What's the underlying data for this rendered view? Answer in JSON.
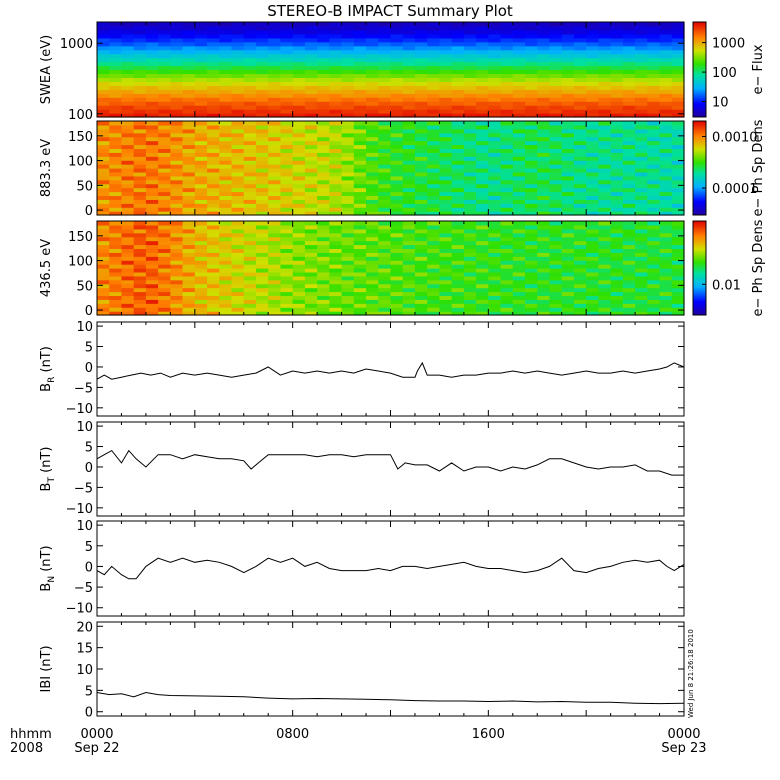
{
  "title": "STEREO-B IMPACT Summary Plot",
  "side_stamp": "Wed Jun  8 21:26:18 2010",
  "time_axis": {
    "row1_labels": [
      "hhmm",
      "0000",
      "0800",
      "1600",
      "0000"
    ],
    "row2_labels": [
      "2008",
      "Sep 22",
      "Sep 23"
    ],
    "range_hours": [
      0,
      24
    ]
  },
  "chart_data": [
    {
      "type": "heatmap",
      "ylabel": "SWEA (eV)",
      "yscale": "log",
      "ylim": [
        90,
        2000
      ],
      "yticks": [
        100,
        1000
      ],
      "ytick_labels": [
        "100",
        "1000"
      ],
      "colorbar": {
        "label": "e− Flux",
        "scale": "log",
        "range": [
          3,
          5000
        ],
        "ticks": [
          10,
          100,
          1000
        ],
        "tick_labels": [
          "10",
          "100",
          "1000"
        ]
      },
      "profile": {
        "energy_eV": [
          90,
          100,
          150,
          200,
          250,
          300,
          400,
          500,
          700,
          1000,
          1500,
          2000
        ],
        "flux": [
          4000,
          3600,
          2000,
          1100,
          700,
          450,
          200,
          100,
          40,
          15,
          6,
          4
        ]
      }
    },
    {
      "type": "heatmap",
      "ylabel": "883.3 eV",
      "ylim": [
        -10,
        180
      ],
      "yticks": [
        0,
        50,
        100,
        150
      ],
      "ytick_labels": [
        "0",
        "50",
        "100",
        "150"
      ],
      "colorbar": {
        "label": "e− Ph Sp Dens",
        "scale": "log",
        "range": [
          3e-05,
          0.002
        ],
        "ticks": [
          0.0001,
          0.001
        ],
        "tick_labels": [
          "0.0001",
          "0.0010"
        ]
      },
      "level_by_hour": {
        "hours": [
          0,
          2,
          4,
          6,
          8,
          10,
          11,
          12,
          14,
          16,
          18,
          20,
          22,
          24
        ],
        "density": [
          0.0009,
          0.0011,
          0.0008,
          0.0007,
          0.0006,
          0.0005,
          0.00035,
          0.0003,
          0.00025,
          0.0002,
          0.00025,
          0.0002,
          0.0002,
          0.00018
        ]
      }
    },
    {
      "type": "heatmap",
      "ylabel": "436.5 eV",
      "ylim": [
        -10,
        180
      ],
      "yticks": [
        0,
        50,
        100,
        150
      ],
      "ytick_labels": [
        "0",
        "50",
        "100",
        "150"
      ],
      "colorbar": {
        "label": "e− Ph Sp Dens",
        "scale": "log",
        "range": [
          0.003,
          0.12
        ],
        "ticks": [
          0.01
        ],
        "tick_labels": [
          "0.01"
        ]
      },
      "level_by_hour": {
        "hours": [
          0,
          2,
          4,
          6,
          8,
          10,
          12,
          14,
          16,
          18,
          20,
          22,
          24
        ],
        "density": [
          0.06,
          0.08,
          0.05,
          0.04,
          0.032,
          0.028,
          0.026,
          0.024,
          0.023,
          0.022,
          0.022,
          0.021,
          0.021
        ]
      }
    },
    {
      "type": "line",
      "ylabel": "B",
      "ylabel_sub": "R",
      "ylabel_unit": " (nT)",
      "ylim": [
        -12,
        11
      ],
      "yticks": [
        -10,
        -5,
        0,
        5,
        10
      ],
      "ytick_labels": [
        "−10",
        "−5",
        "0",
        "5",
        "10"
      ],
      "x": [
        0,
        0.3,
        0.6,
        1.0,
        1.4,
        1.8,
        2.2,
        2.6,
        3.0,
        3.5,
        4.0,
        4.5,
        5.0,
        5.5,
        6.0,
        6.5,
        7.0,
        7.5,
        8.0,
        8.5,
        9.0,
        9.5,
        10.0,
        10.5,
        11.0,
        11.5,
        12.0,
        12.5,
        13.0,
        13.1,
        13.3,
        13.5,
        14.0,
        14.5,
        15.0,
        15.5,
        16.0,
        16.5,
        17.0,
        17.5,
        18.0,
        18.5,
        19.0,
        19.5,
        20.0,
        20.5,
        21.0,
        21.5,
        22.0,
        22.5,
        23.0,
        23.3,
        23.6,
        24.0
      ],
      "y": [
        -3,
        -2,
        -3,
        -2.5,
        -2,
        -1.5,
        -2,
        -1.5,
        -2.5,
        -1.5,
        -2,
        -1.5,
        -2,
        -2.5,
        -2,
        -1.5,
        0,
        -2,
        -1,
        -1.5,
        -1,
        -1.5,
        -1,
        -1.5,
        -0.5,
        -1,
        -1.5,
        -2.5,
        -2.5,
        -1,
        1,
        -2,
        -2,
        -2.5,
        -2,
        -2,
        -1.5,
        -1.5,
        -1,
        -1.5,
        -1,
        -1.5,
        -2,
        -1.5,
        -1,
        -1.5,
        -1.5,
        -1,
        -1.5,
        -1,
        -0.5,
        0,
        1,
        0
      ]
    },
    {
      "type": "line",
      "ylabel": "B",
      "ylabel_sub": "T",
      "ylabel_unit": " (nT)",
      "ylim": [
        -12,
        11
      ],
      "yticks": [
        -10,
        -5,
        0,
        5,
        10
      ],
      "ytick_labels": [
        "−10",
        "−5",
        "0",
        "5",
        "10"
      ],
      "x": [
        0,
        0.3,
        0.6,
        1.0,
        1.3,
        1.6,
        2.0,
        2.5,
        3.0,
        3.5,
        4.0,
        4.5,
        5.0,
        5.5,
        6.0,
        6.3,
        6.6,
        7.0,
        7.5,
        8.0,
        8.5,
        9.0,
        9.5,
        10.0,
        10.5,
        11.0,
        11.5,
        12.0,
        12.3,
        12.6,
        13.0,
        13.5,
        14.0,
        14.5,
        15.0,
        15.5,
        16.0,
        16.5,
        17.0,
        17.5,
        18.0,
        18.5,
        19.0,
        19.5,
        20.0,
        20.5,
        21.0,
        21.5,
        22.0,
        22.5,
        23.0,
        23.5,
        24.0
      ],
      "y": [
        2,
        3,
        4,
        1,
        4,
        2,
        0,
        3,
        3,
        2,
        3,
        2.5,
        2,
        2,
        1.5,
        -0.5,
        1,
        3,
        3,
        3,
        3,
        2.5,
        3,
        3,
        2.5,
        3,
        3,
        3,
        -0.5,
        1,
        0.5,
        0.5,
        -1,
        1,
        -1,
        0,
        0,
        -1,
        0,
        -0.5,
        0.5,
        2,
        2,
        1,
        0,
        -0.5,
        0,
        0,
        0.5,
        -1,
        -1,
        -2,
        -2
      ]
    },
    {
      "type": "line",
      "ylabel": "B",
      "ylabel_sub": "N",
      "ylabel_unit": " (nT)",
      "ylim": [
        -12,
        11
      ],
      "yticks": [
        -10,
        -5,
        0,
        5,
        10
      ],
      "ytick_labels": [
        "−10",
        "−5",
        "0",
        "5",
        "10"
      ],
      "x": [
        0,
        0.3,
        0.6,
        1.0,
        1.3,
        1.6,
        2.0,
        2.5,
        3.0,
        3.5,
        4.0,
        4.5,
        5.0,
        5.5,
        6.0,
        6.5,
        7.0,
        7.5,
        8.0,
        8.5,
        9.0,
        9.5,
        10.0,
        10.5,
        11.0,
        11.5,
        12.0,
        12.5,
        13.0,
        13.5,
        14.0,
        14.5,
        15.0,
        15.5,
        16.0,
        16.5,
        17.0,
        17.5,
        18.0,
        18.5,
        19.0,
        19.5,
        20.0,
        20.5,
        21.0,
        21.5,
        22.0,
        22.5,
        23.0,
        23.3,
        23.6,
        24.0
      ],
      "y": [
        -1,
        -2,
        0,
        -2,
        -3,
        -3,
        0,
        2,
        1,
        2,
        1,
        1.5,
        1,
        0,
        -1.5,
        0,
        2,
        1,
        2,
        0,
        1,
        -0.5,
        -1,
        -1,
        -1,
        -0.5,
        -1,
        0,
        0,
        -0.5,
        0,
        0.5,
        1,
        0,
        -0.5,
        -0.5,
        -1,
        -1.5,
        -1,
        0,
        2,
        -1,
        -1.5,
        -0.5,
        0,
        1,
        1.5,
        1,
        1.5,
        0,
        -1,
        0.5
      ]
    },
    {
      "type": "line",
      "ylabel": "IBI (nT)",
      "ylim": [
        -1,
        21
      ],
      "yticks": [
        0,
        5,
        10,
        15,
        20
      ],
      "ytick_labels": [
        "0",
        "5",
        "10",
        "15",
        "20"
      ],
      "x": [
        0,
        0.5,
        1.0,
        1.5,
        2.0,
        2.5,
        3.0,
        4.0,
        5.0,
        6.0,
        7.0,
        8.0,
        9.0,
        10.0,
        11.0,
        12.0,
        13.0,
        14.0,
        15.0,
        16.0,
        17.0,
        18.0,
        19.0,
        20.0,
        21.0,
        22.0,
        23.0,
        24.0
      ],
      "y": [
        4.5,
        4.0,
        4.2,
        3.5,
        4.5,
        4.0,
        3.8,
        3.7,
        3.6,
        3.5,
        3.2,
        3.0,
        3.1,
        3.0,
        2.9,
        2.8,
        2.6,
        2.5,
        2.5,
        2.4,
        2.5,
        2.3,
        2.4,
        2.2,
        2.2,
        2.0,
        1.9,
        2.0
      ]
    }
  ]
}
